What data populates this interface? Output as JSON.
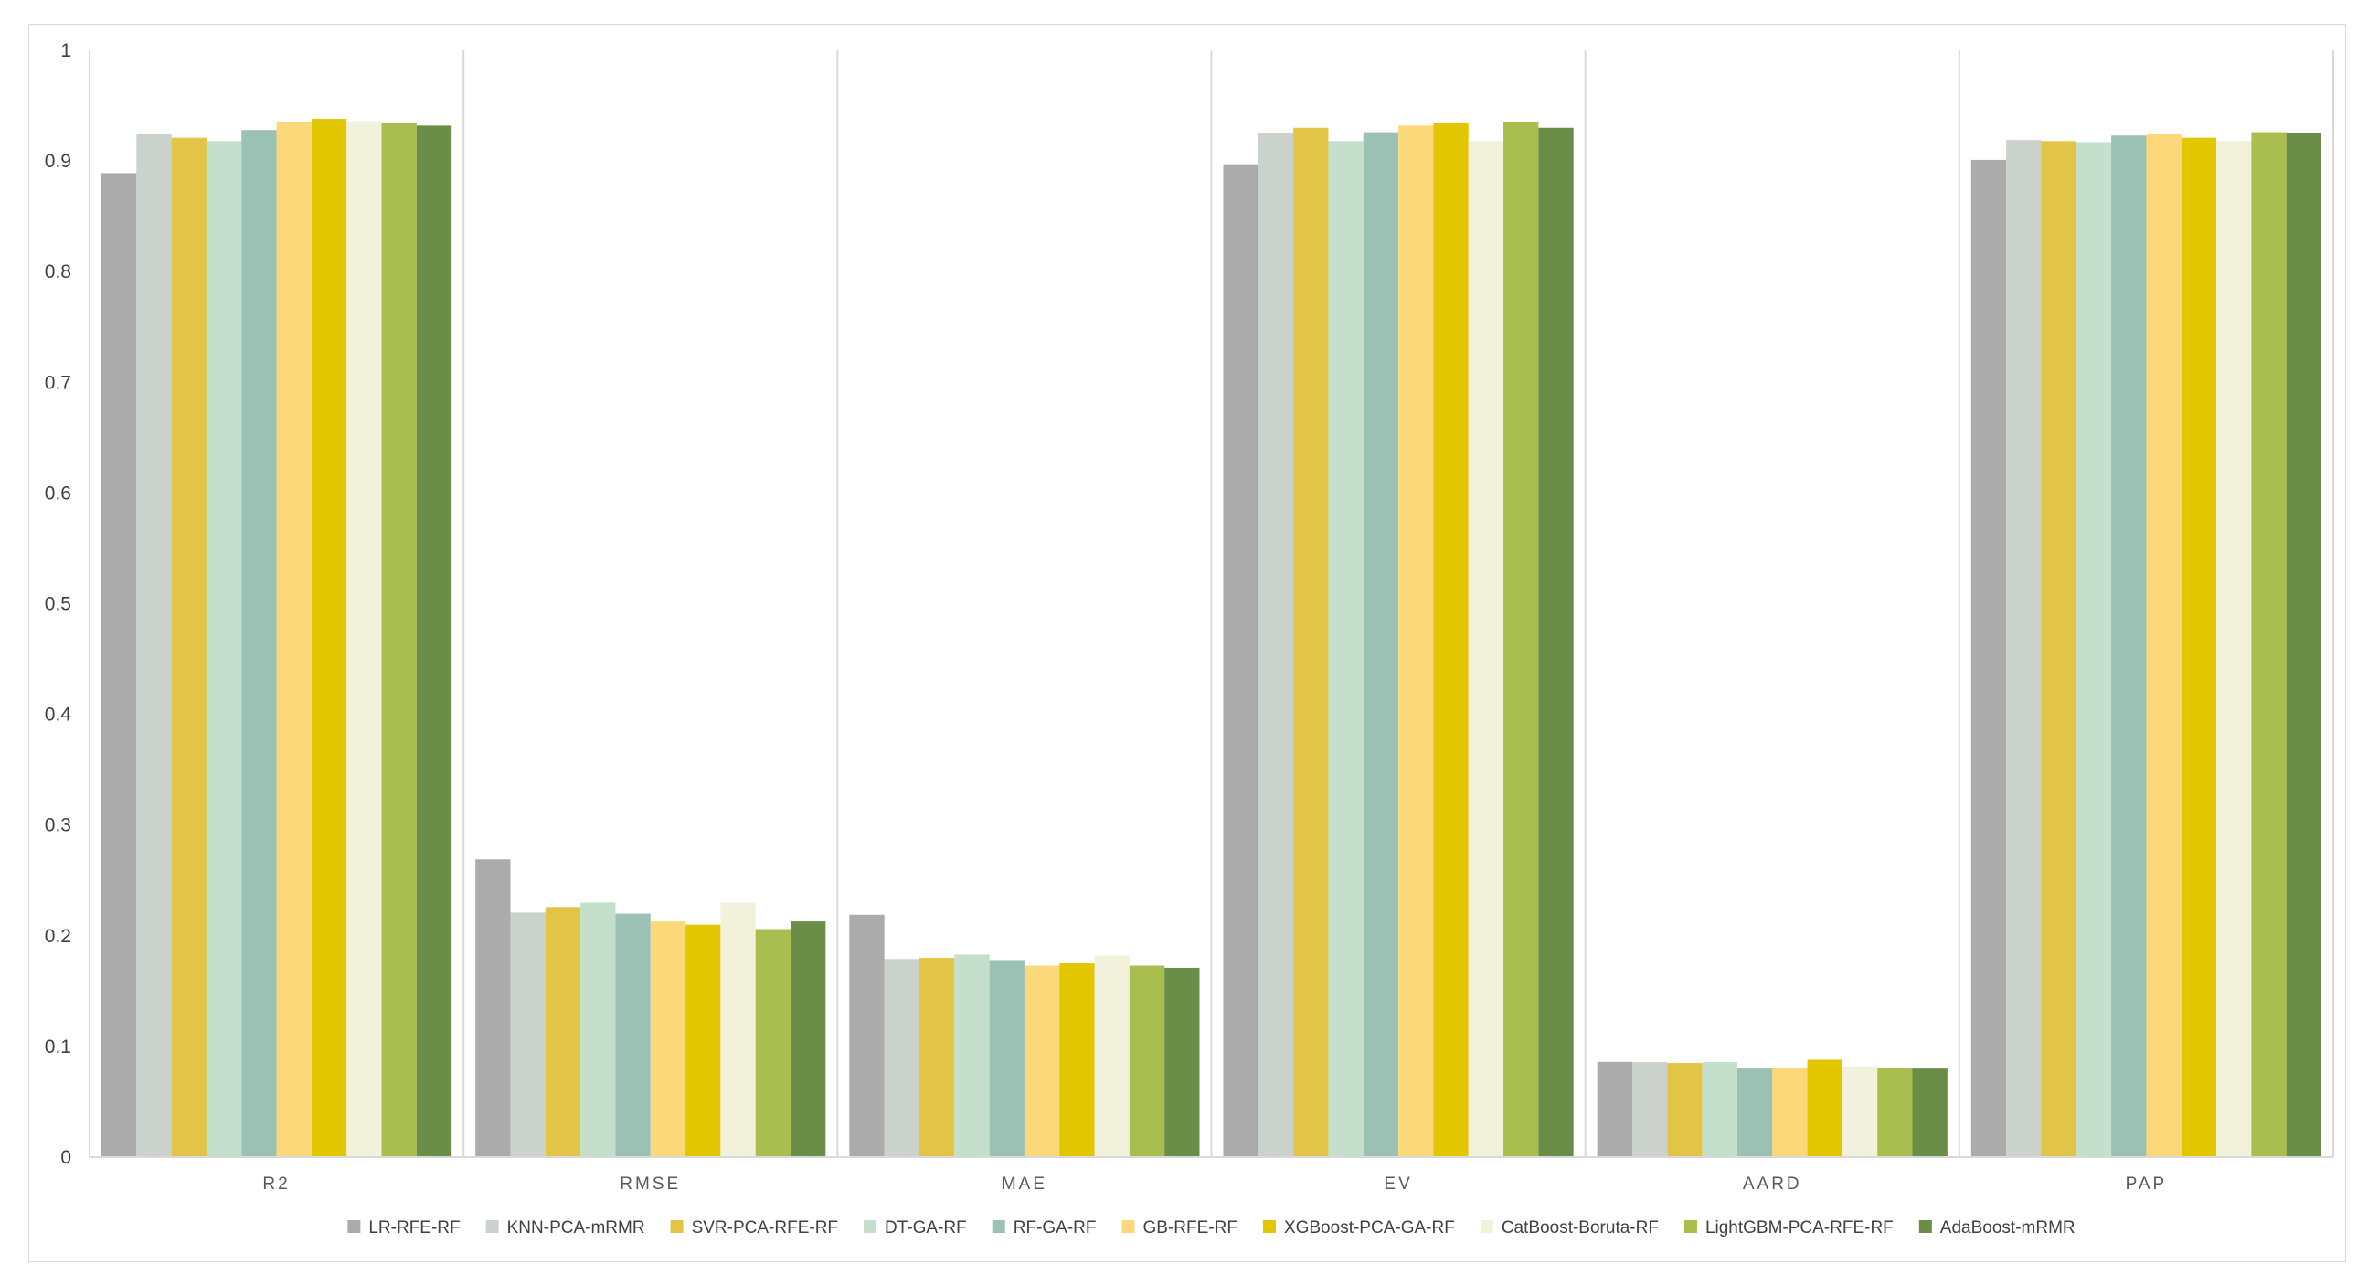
{
  "chart_data": {
    "type": "bar",
    "title": "",
    "xlabel": "",
    "ylabel": "",
    "ylim": [
      0,
      1
    ],
    "yticks": [
      "0",
      "0.1",
      "0.2",
      "0.3",
      "0.4",
      "0.5",
      "0.6",
      "0.7",
      "0.8",
      "0.9",
      "1"
    ],
    "grid": false,
    "legend_position": "bottom",
    "categories": [
      "R2",
      "RMSE",
      "MAE",
      "EV",
      "AARD",
      "PAP"
    ],
    "series": [
      {
        "name": "LR-RFE-RF",
        "color": "#ABABAB",
        "values": [
          0.889,
          0.269,
          0.219,
          0.897,
          0.086,
          0.901
        ]
      },
      {
        "name": "KNN-PCA-mRMR",
        "color": "#CBD2CC",
        "values": [
          0.924,
          0.221,
          0.179,
          0.925,
          0.086,
          0.919
        ]
      },
      {
        "name": "SVR-PCA-RFE-RF",
        "color": "#E2C446",
        "values": [
          0.921,
          0.226,
          0.18,
          0.93,
          0.085,
          0.918
        ]
      },
      {
        "name": "DT-GA-RF",
        "color": "#C4DFCB",
        "values": [
          0.918,
          0.23,
          0.183,
          0.918,
          0.086,
          0.917
        ]
      },
      {
        "name": "RF-GA-RF",
        "color": "#9BC1B4",
        "values": [
          0.928,
          0.22,
          0.178,
          0.926,
          0.08,
          0.923
        ]
      },
      {
        "name": "GB-RFE-RF",
        "color": "#FBD87A",
        "values": [
          0.935,
          0.213,
          0.173,
          0.932,
          0.081,
          0.924
        ]
      },
      {
        "name": "XGBoost-PCA-GA-RF",
        "color": "#E2C600",
        "values": [
          0.938,
          0.21,
          0.175,
          0.934,
          0.088,
          0.921
        ]
      },
      {
        "name": "CatBoost-Boruta-RF",
        "color": "#F1F1DC",
        "values": [
          0.936,
          0.23,
          0.182,
          0.918,
          0.082,
          0.918
        ]
      },
      {
        "name": "LightGBM-PCA-RFE-RF",
        "color": "#A9BE4E",
        "values": [
          0.934,
          0.206,
          0.173,
          0.935,
          0.081,
          0.926
        ]
      },
      {
        "name": "AdaBoost-mRMR",
        "color": "#6A8E48",
        "values": [
          0.932,
          0.213,
          0.171,
          0.93,
          0.08,
          0.925
        ]
      }
    ]
  }
}
